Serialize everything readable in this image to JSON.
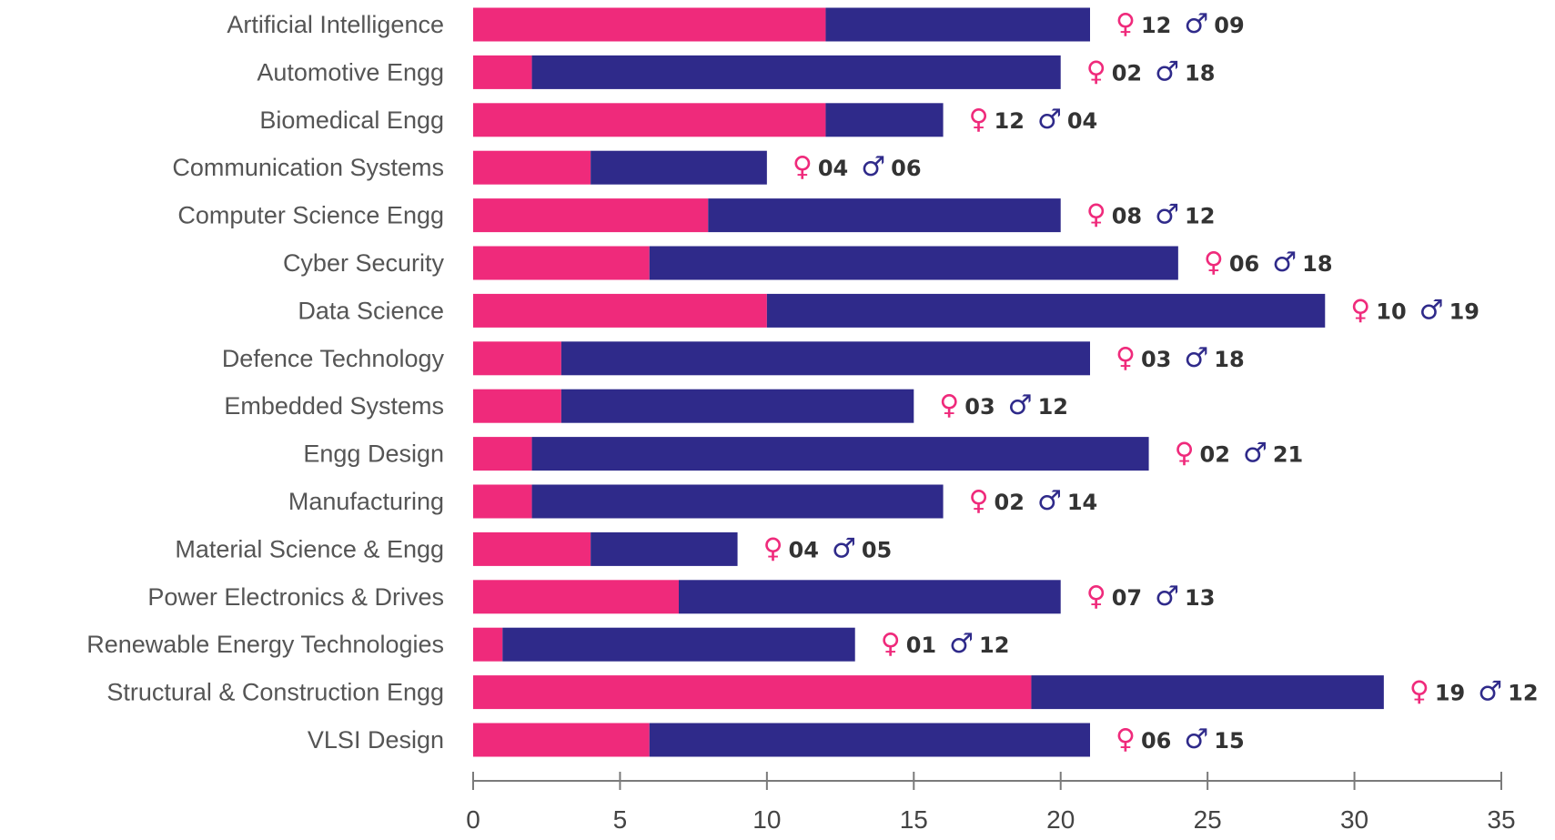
{
  "chart_data": {
    "type": "bar",
    "stacked": true,
    "orientation": "horizontal",
    "categories": [
      "Artificial Intelligence",
      "Automotive Engg",
      "Biomedical Engg",
      "Communication Systems",
      "Computer Science Engg",
      "Cyber Security",
      "Data Science",
      "Defence Technology",
      "Embedded Systems",
      "Engg Design",
      "Manufacturing",
      "Material Science & Engg",
      "Power Electronics & Drives",
      "Renewable Energy Technologies",
      "Structural & Construction Engg",
      "VLSI Design"
    ],
    "series": [
      {
        "symbol": "♀",
        "color": "#ef2a7b",
        "values": [
          12,
          2,
          12,
          4,
          8,
          6,
          10,
          3,
          3,
          2,
          2,
          4,
          7,
          1,
          19,
          6
        ],
        "labels": [
          "12",
          "02",
          "12",
          "04",
          "08",
          "06",
          "10",
          "03",
          "03",
          "02",
          "02",
          "04",
          "07",
          "01",
          "19",
          "06"
        ]
      },
      {
        "symbol": "♂",
        "color": "#2f2a8a",
        "values": [
          9,
          18,
          4,
          6,
          12,
          18,
          19,
          18,
          12,
          21,
          14,
          5,
          13,
          12,
          12,
          15
        ],
        "labels": [
          "09",
          "18",
          "04",
          "06",
          "12",
          "18",
          "19",
          "18",
          "12",
          "21",
          "14",
          "05",
          "13",
          "12",
          "12",
          "15"
        ]
      }
    ],
    "xlim": [
      0,
      35
    ],
    "xticks": [
      "0",
      "5",
      "10",
      "15",
      "20",
      "25",
      "30",
      "35"
    ],
    "grid": false,
    "axis_color": "#7a7a7a"
  }
}
